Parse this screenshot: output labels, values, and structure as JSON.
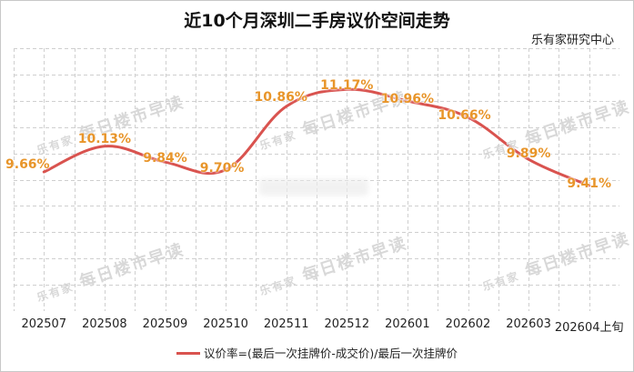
{
  "header": {
    "title": "近10个月深圳二手房议价空间走势",
    "source": "乐有家研究中心"
  },
  "legend": {
    "label": "议价率=(最后一次挂牌价-成交价)/最后一次挂牌价",
    "color": "#d9534f"
  },
  "watermark": {
    "logo": "乐有家",
    "text": "每日楼市早读"
  },
  "colors": {
    "line": "#d9534f",
    "data_label": "#e8952a",
    "grid": "#cfcfcf"
  },
  "chart_data": {
    "type": "line",
    "title": "近10个月深圳二手房议价空间走势",
    "subtitle": "乐有家研究中心",
    "xlabel": "",
    "ylabel": "",
    "categories": [
      "202507",
      "202508",
      "202509",
      "202510",
      "202511",
      "202512",
      "202601",
      "202602",
      "202603",
      "202604上旬"
    ],
    "series": [
      {
        "name": "议价率=(最后一次挂牌价-成交价)/最后一次挂牌价",
        "values": [
          9.66,
          10.13,
          9.84,
          9.7,
          10.86,
          11.17,
          10.96,
          10.66,
          9.89,
          9.41
        ],
        "labels": [
          "9.66%",
          "10.13%",
          "9.84%",
          "9.70%",
          "10.86%",
          "11.17%",
          "10.96%",
          "10.66%",
          "9.89%",
          "9.41%"
        ]
      }
    ],
    "smooth": true,
    "grid": true,
    "y_axis_visible": false,
    "legend_position": "bottom"
  }
}
